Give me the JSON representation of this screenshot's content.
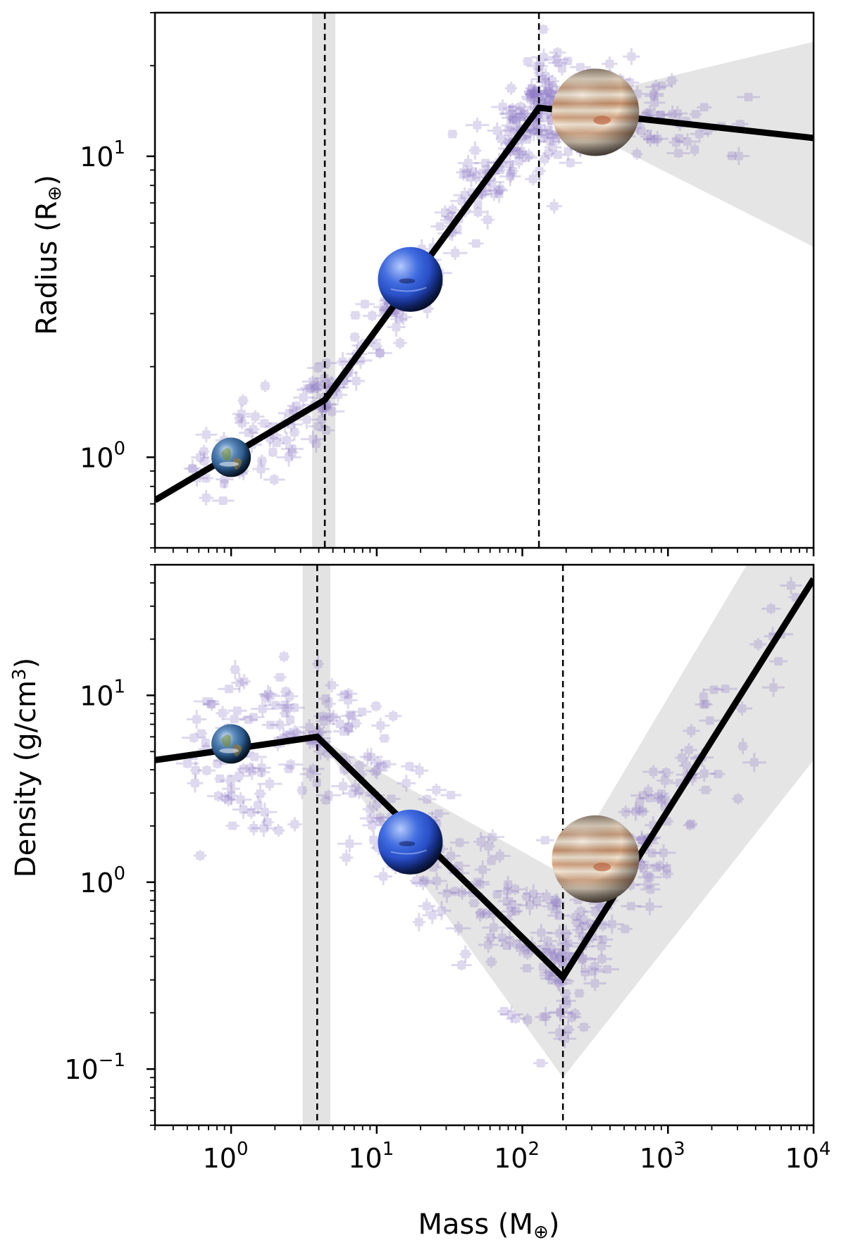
{
  "chart_data": [
    {
      "type": "line",
      "panel": "top",
      "xscale": "log",
      "yscale": "log",
      "xlim": [
        0.3,
        10000
      ],
      "ylim": [
        0.5,
        30
      ],
      "xlabel": "",
      "ylabel": "Radius (R⊕)",
      "ylabel_main": "Radius (R",
      "ylabel_symbol": "⊕",
      "ylabel_close": ")",
      "yticks": [
        {
          "base": "10",
          "exp": "0",
          "value": 1
        },
        {
          "base": "10",
          "exp": "1",
          "value": 10
        }
      ],
      "xticks_labeled": false,
      "series": [
        {
          "values": [
            [
              0.3,
              0.72
            ],
            [
              4.4,
              1.55
            ],
            [
              130,
              14.5
            ],
            [
              10000,
              11.5
            ]
          ]
        }
      ],
      "breakpoints": [
        {
          "x": 4.4,
          "band": [
            3.6,
            5.2
          ]
        },
        {
          "x": 130,
          "band": null
        }
      ],
      "uncertainty_band": [
        {
          "x": 130,
          "low": 14.5,
          "high": 14.5
        },
        {
          "x": 10000,
          "low": 5.0,
          "high": 24
        }
      ],
      "planets": [
        {
          "name": "earth",
          "x": 1.0,
          "y": 1.0,
          "size": "small"
        },
        {
          "name": "neptune",
          "x": 17,
          "y": 3.9,
          "size": "medium"
        },
        {
          "name": "jupiter",
          "x": 318,
          "y": 14.0,
          "size": "large"
        }
      ],
      "scatter_color": "#8d78c6"
    },
    {
      "type": "line",
      "panel": "bottom",
      "xscale": "log",
      "yscale": "log",
      "xlim": [
        0.3,
        10000
      ],
      "ylim": [
        0.05,
        50
      ],
      "xlabel": "Mass (M⊕)",
      "xlabel_main": "Mass (M",
      "xlabel_symbol": "⊕",
      "xlabel_close": ")",
      "ylabel": "Density (g/cm3)",
      "ylabel_main": "Density (g/cm",
      "ylabel_exp": "3",
      "ylabel_close": ")",
      "yticks": [
        {
          "base": "10",
          "exp": "−1",
          "value": 0.1
        },
        {
          "base": "10",
          "exp": "0",
          "value": 1
        },
        {
          "base": "10",
          "exp": "1",
          "value": 10
        }
      ],
      "xticks": [
        {
          "base": "10",
          "exp": "0",
          "value": 1
        },
        {
          "base": "10",
          "exp": "1",
          "value": 10
        },
        {
          "base": "10",
          "exp": "2",
          "value": 100
        },
        {
          "base": "10",
          "exp": "3",
          "value": 1000
        },
        {
          "base": "10",
          "exp": "4",
          "value": 10000
        }
      ],
      "series": [
        {
          "values": [
            [
              0.3,
              4.5
            ],
            [
              3.9,
              6.0
            ],
            [
              190,
              0.31
            ],
            [
              10000,
              42
            ]
          ]
        }
      ],
      "breakpoints": [
        {
          "x": 3.9,
          "band": [
            3.1,
            4.8
          ]
        },
        {
          "x": 190,
          "band": null
        }
      ],
      "uncertainty_band": [
        {
          "x": 3.9,
          "low": 6.0,
          "high": 6.0
        },
        {
          "x": 190,
          "low": 0.09,
          "high": 1.1
        },
        {
          "x": 10000,
          "low": 4.5,
          "high": 200
        }
      ],
      "planets": [
        {
          "name": "earth",
          "x": 1.0,
          "y": 5.5,
          "size": "small"
        },
        {
          "name": "neptune",
          "x": 17,
          "y": 1.64,
          "size": "medium"
        },
        {
          "name": "jupiter",
          "x": 318,
          "y": 1.33,
          "size": "large"
        }
      ],
      "scatter_color": "#8d78c6"
    }
  ]
}
